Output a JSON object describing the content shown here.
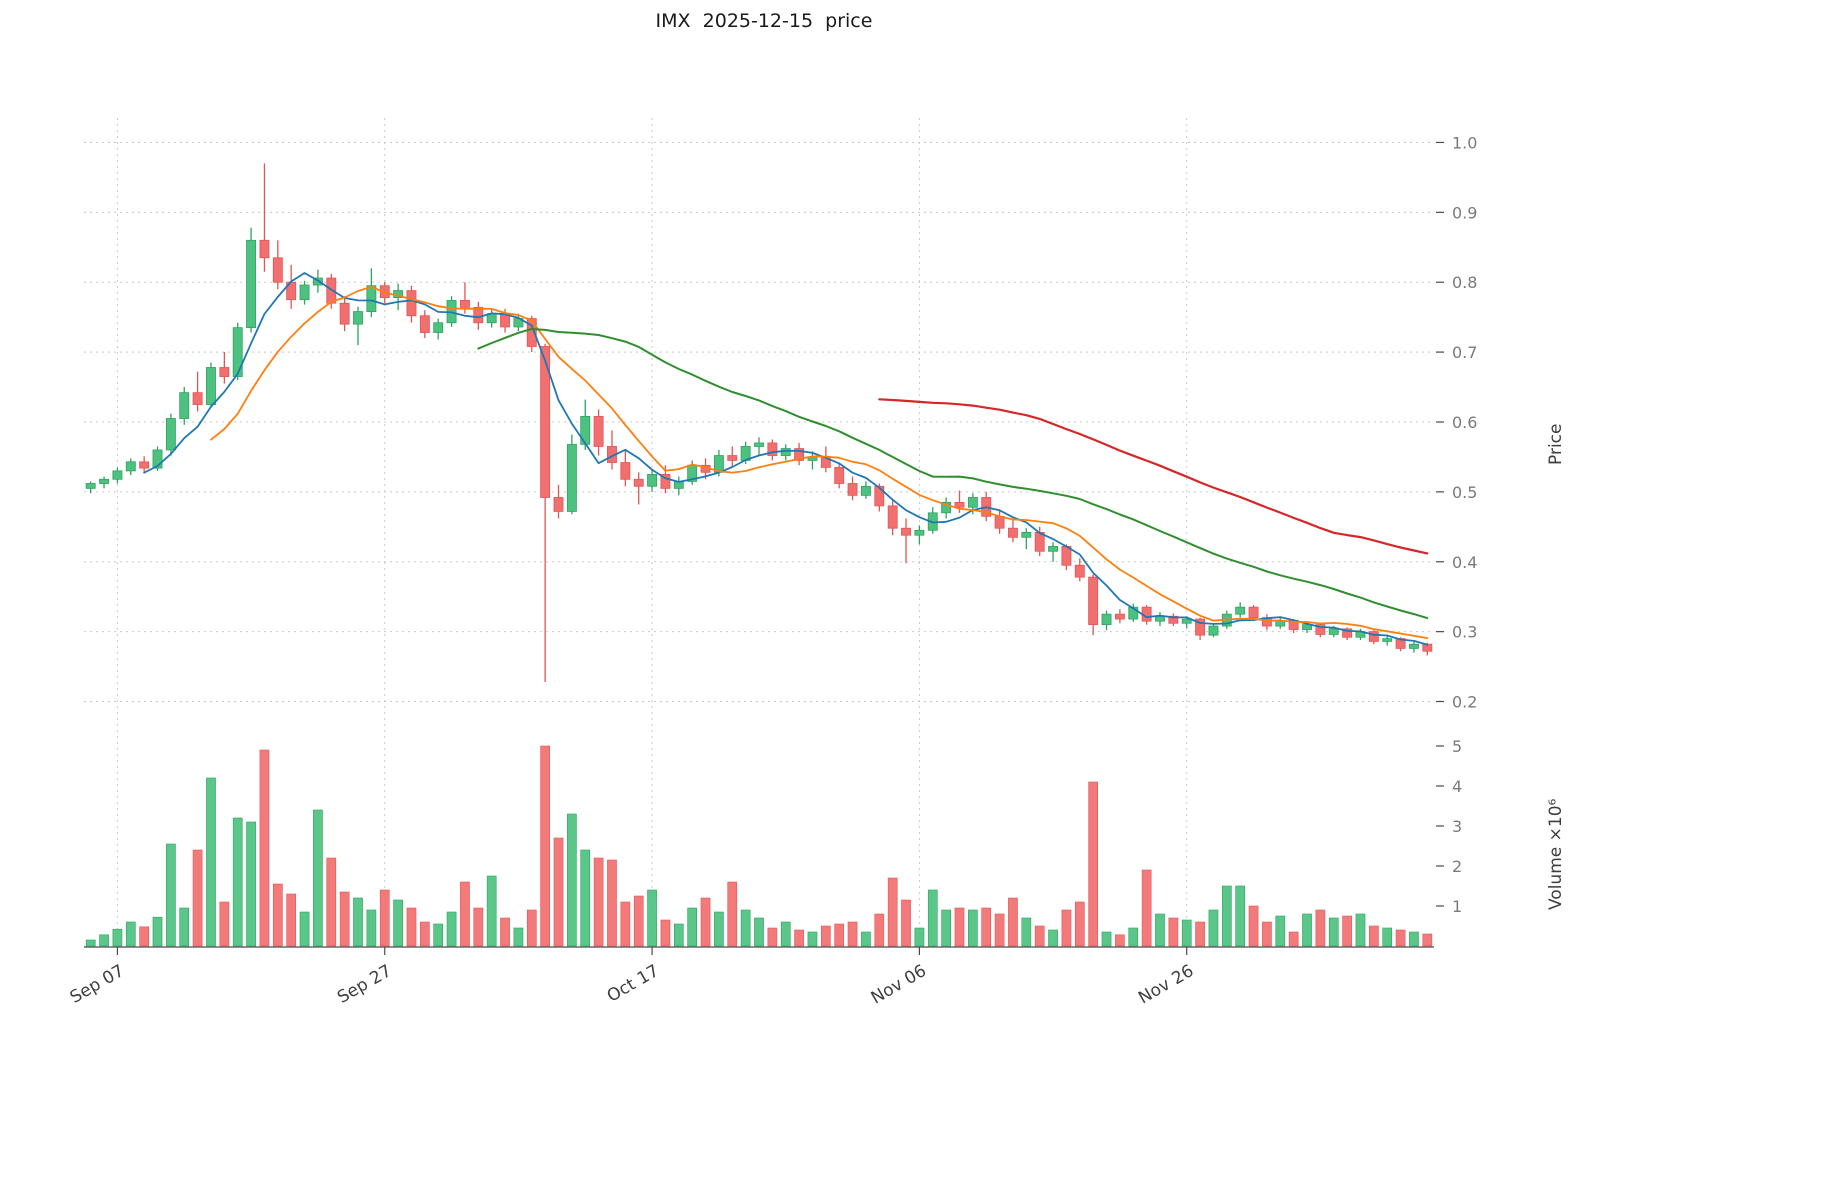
{
  "title": "IMX  2025-12-15  price",
  "style": {
    "up_color": "#4dc17f",
    "up_edge": "#2fa35e",
    "down_color": "#f26f6f",
    "down_edge": "#e25555",
    "grid_color": "#c9c9c9",
    "tick_label_color": "#7a7a7a",
    "x_label_color": "#3f3f3f",
    "spine_color": "#4a4a4a",
    "title_color": "#1a1a1a"
  },
  "chart_data": {
    "type": "candlestick",
    "symbol": "IMX",
    "title": "IMX  2025-12-15  price",
    "legend": "none",
    "grid": "dashed",
    "axes": {
      "price_label": "Price",
      "volume_label": "Volume ×10⁶",
      "price_ticks": [
        0.2,
        0.3,
        0.4,
        0.5,
        0.6,
        0.7,
        0.8,
        0.9,
        1.0
      ],
      "volume_ticks": [
        1,
        2,
        3,
        4,
        5
      ],
      "x_ticks": [
        {
          "index": 2,
          "label": "Sep 07"
        },
        {
          "index": 22,
          "label": "Sep 27"
        },
        {
          "index": 42,
          "label": "Oct 17"
        },
        {
          "index": 62,
          "label": "Nov 06"
        },
        {
          "index": 82,
          "label": "Nov 26"
        }
      ]
    },
    "price_range": [
      0.185,
      1.035
    ],
    "volume_max_millions": 5.45,
    "moving_averages": [
      {
        "period": 5,
        "color": "#1f77b4",
        "width": 1.8
      },
      {
        "period": 10,
        "color": "#ff7f0e",
        "width": 1.8
      },
      {
        "period": 30,
        "color": "#2f8f2f",
        "width": 2.0
      },
      {
        "period": 60,
        "color": "#d62728",
        "width": 2.2
      }
    ],
    "columns": [
      "date",
      "open",
      "high",
      "low",
      "close",
      "volume_millions"
    ],
    "candles": [
      [
        "2025-09-05",
        0.505,
        0.515,
        0.498,
        0.512,
        0.15
      ],
      [
        "2025-09-06",
        0.512,
        0.522,
        0.505,
        0.518,
        0.28
      ],
      [
        "2025-09-07",
        0.518,
        0.535,
        0.512,
        0.53,
        0.42
      ],
      [
        "2025-09-08",
        0.53,
        0.548,
        0.524,
        0.543,
        0.6
      ],
      [
        "2025-09-09",
        0.543,
        0.551,
        0.528,
        0.534,
        0.48
      ],
      [
        "2025-09-10",
        0.534,
        0.565,
        0.53,
        0.56,
        0.72
      ],
      [
        "2025-09-11",
        0.56,
        0.612,
        0.552,
        0.605,
        2.55
      ],
      [
        "2025-09-12",
        0.605,
        0.65,
        0.596,
        0.642,
        0.95
      ],
      [
        "2025-09-13",
        0.642,
        0.672,
        0.615,
        0.625,
        2.4
      ],
      [
        "2025-09-14",
        0.625,
        0.685,
        0.62,
        0.678,
        4.2
      ],
      [
        "2025-09-15",
        0.678,
        0.7,
        0.655,
        0.665,
        1.1
      ],
      [
        "2025-09-16",
        0.665,
        0.742,
        0.66,
        0.735,
        3.2
      ],
      [
        "2025-09-17",
        0.735,
        0.878,
        0.728,
        0.86,
        3.1
      ],
      [
        "2025-09-18",
        0.86,
        0.97,
        0.815,
        0.835,
        4.9
      ],
      [
        "2025-09-19",
        0.835,
        0.86,
        0.79,
        0.8,
        1.55
      ],
      [
        "2025-09-20",
        0.8,
        0.825,
        0.762,
        0.775,
        1.3
      ],
      [
        "2025-09-21",
        0.775,
        0.802,
        0.768,
        0.796,
        0.85
      ],
      [
        "2025-09-22",
        0.796,
        0.818,
        0.785,
        0.806,
        3.4
      ],
      [
        "2025-09-23",
        0.806,
        0.812,
        0.762,
        0.77,
        2.2
      ],
      [
        "2025-09-24",
        0.77,
        0.78,
        0.73,
        0.74,
        1.35
      ],
      [
        "2025-09-25",
        0.74,
        0.765,
        0.71,
        0.758,
        1.2
      ],
      [
        "2025-09-26",
        0.758,
        0.82,
        0.75,
        0.795,
        0.9
      ],
      [
        "2025-09-27",
        0.795,
        0.8,
        0.77,
        0.778,
        1.4
      ],
      [
        "2025-09-28",
        0.778,
        0.798,
        0.76,
        0.788,
        1.15
      ],
      [
        "2025-09-29",
        0.788,
        0.795,
        0.742,
        0.752,
        0.95
      ],
      [
        "2025-09-30",
        0.752,
        0.76,
        0.72,
        0.728,
        0.6
      ],
      [
        "2025-10-01",
        0.728,
        0.748,
        0.718,
        0.742,
        0.55
      ],
      [
        "2025-10-02",
        0.742,
        0.78,
        0.736,
        0.774,
        0.85
      ],
      [
        "2025-10-03",
        0.774,
        0.8,
        0.755,
        0.764,
        1.6
      ],
      [
        "2025-10-04",
        0.764,
        0.772,
        0.732,
        0.742,
        0.95
      ],
      [
        "2025-10-05",
        0.742,
        0.762,
        0.735,
        0.755,
        1.75
      ],
      [
        "2025-10-06",
        0.755,
        0.762,
        0.728,
        0.736,
        0.7
      ],
      [
        "2025-10-07",
        0.736,
        0.755,
        0.73,
        0.748,
        0.45
      ],
      [
        "2025-10-08",
        0.748,
        0.752,
        0.7,
        0.708,
        0.9
      ],
      [
        "2025-10-09",
        0.708,
        0.712,
        0.228,
        0.492,
        5.0
      ],
      [
        "2025-10-10",
        0.492,
        0.51,
        0.462,
        0.472,
        2.7
      ],
      [
        "2025-10-11",
        0.472,
        0.582,
        0.468,
        0.568,
        3.3
      ],
      [
        "2025-10-12",
        0.568,
        0.632,
        0.56,
        0.608,
        2.4
      ],
      [
        "2025-10-13",
        0.608,
        0.618,
        0.552,
        0.565,
        2.2
      ],
      [
        "2025-10-14",
        0.565,
        0.588,
        0.532,
        0.542,
        2.15
      ],
      [
        "2025-10-15",
        0.542,
        0.56,
        0.508,
        0.518,
        1.1
      ],
      [
        "2025-10-16",
        0.518,
        0.528,
        0.482,
        0.508,
        1.25
      ],
      [
        "2025-10-17",
        0.508,
        0.532,
        0.5,
        0.525,
        1.4
      ],
      [
        "2025-10-18",
        0.525,
        0.538,
        0.498,
        0.505,
        0.65
      ],
      [
        "2025-10-19",
        0.505,
        0.522,
        0.495,
        0.515,
        0.55
      ],
      [
        "2025-10-20",
        0.515,
        0.545,
        0.51,
        0.538,
        0.95
      ],
      [
        "2025-10-21",
        0.538,
        0.548,
        0.518,
        0.528,
        1.2
      ],
      [
        "2025-10-22",
        0.528,
        0.56,
        0.522,
        0.552,
        0.85
      ],
      [
        "2025-10-23",
        0.552,
        0.565,
        0.535,
        0.545,
        1.6
      ],
      [
        "2025-10-24",
        0.545,
        0.572,
        0.54,
        0.565,
        0.9
      ],
      [
        "2025-10-25",
        0.565,
        0.578,
        0.552,
        0.57,
        0.7
      ],
      [
        "2025-10-26",
        0.57,
        0.575,
        0.545,
        0.552,
        0.45
      ],
      [
        "2025-10-27",
        0.552,
        0.568,
        0.545,
        0.562,
        0.6
      ],
      [
        "2025-10-28",
        0.562,
        0.57,
        0.538,
        0.545,
        0.4
      ],
      [
        "2025-10-29",
        0.545,
        0.558,
        0.532,
        0.55,
        0.35
      ],
      [
        "2025-10-30",
        0.55,
        0.565,
        0.528,
        0.535,
        0.5
      ],
      [
        "2025-10-31",
        0.535,
        0.542,
        0.505,
        0.512,
        0.55
      ],
      [
        "2025-11-01",
        0.512,
        0.522,
        0.488,
        0.495,
        0.6
      ],
      [
        "2025-11-02",
        0.495,
        0.515,
        0.49,
        0.508,
        0.35
      ],
      [
        "2025-11-03",
        0.508,
        0.512,
        0.472,
        0.48,
        0.8
      ],
      [
        "2025-11-04",
        0.48,
        0.488,
        0.438,
        0.448,
        1.7
      ],
      [
        "2025-11-05",
        0.448,
        0.462,
        0.398,
        0.438,
        1.15
      ],
      [
        "2025-11-06",
        0.438,
        0.452,
        0.425,
        0.445,
        0.45
      ],
      [
        "2025-11-07",
        0.445,
        0.478,
        0.44,
        0.47,
        1.4
      ],
      [
        "2025-11-08",
        0.47,
        0.492,
        0.462,
        0.485,
        0.9
      ],
      [
        "2025-11-09",
        0.485,
        0.502,
        0.47,
        0.478,
        0.95
      ],
      [
        "2025-11-10",
        0.478,
        0.498,
        0.468,
        0.492,
        0.9
      ],
      [
        "2025-11-11",
        0.492,
        0.5,
        0.458,
        0.465,
        0.95
      ],
      [
        "2025-11-12",
        0.465,
        0.475,
        0.44,
        0.448,
        0.8
      ],
      [
        "2025-11-13",
        0.448,
        0.462,
        0.428,
        0.435,
        1.2
      ],
      [
        "2025-11-14",
        0.435,
        0.448,
        0.418,
        0.442,
        0.7
      ],
      [
        "2025-11-15",
        0.442,
        0.45,
        0.408,
        0.415,
        0.5
      ],
      [
        "2025-11-16",
        0.415,
        0.428,
        0.4,
        0.422,
        0.4
      ],
      [
        "2025-11-17",
        0.422,
        0.425,
        0.388,
        0.395,
        0.9
      ],
      [
        "2025-11-18",
        0.395,
        0.405,
        0.372,
        0.378,
        1.1
      ],
      [
        "2025-11-19",
        0.378,
        0.382,
        0.295,
        0.31,
        4.1
      ],
      [
        "2025-11-20",
        0.31,
        0.33,
        0.302,
        0.325,
        0.35
      ],
      [
        "2025-11-21",
        0.325,
        0.332,
        0.312,
        0.318,
        0.28
      ],
      [
        "2025-11-22",
        0.318,
        0.34,
        0.314,
        0.335,
        0.45
      ],
      [
        "2025-11-23",
        0.335,
        0.338,
        0.31,
        0.315,
        1.9
      ],
      [
        "2025-11-24",
        0.315,
        0.328,
        0.308,
        0.322,
        0.8
      ],
      [
        "2025-11-25",
        0.322,
        0.326,
        0.308,
        0.312,
        0.7
      ],
      [
        "2025-11-26",
        0.312,
        0.322,
        0.305,
        0.318,
        0.65
      ],
      [
        "2025-11-27",
        0.318,
        0.32,
        0.288,
        0.295,
        0.6
      ],
      [
        "2025-11-28",
        0.295,
        0.312,
        0.292,
        0.308,
        0.9
      ],
      [
        "2025-11-29",
        0.308,
        0.33,
        0.304,
        0.325,
        1.5
      ],
      [
        "2025-11-30",
        0.325,
        0.342,
        0.32,
        0.335,
        1.5
      ],
      [
        "2025-12-01",
        0.335,
        0.338,
        0.315,
        0.32,
        1.0
      ],
      [
        "2025-12-02",
        0.32,
        0.325,
        0.302,
        0.308,
        0.6
      ],
      [
        "2025-12-03",
        0.308,
        0.32,
        0.304,
        0.316,
        0.75
      ],
      [
        "2025-12-04",
        0.316,
        0.318,
        0.298,
        0.303,
        0.35
      ],
      [
        "2025-12-05",
        0.303,
        0.315,
        0.298,
        0.31,
        0.8
      ],
      [
        "2025-12-06",
        0.31,
        0.312,
        0.292,
        0.296,
        0.9
      ],
      [
        "2025-12-07",
        0.296,
        0.308,
        0.292,
        0.304,
        0.7
      ],
      [
        "2025-12-08",
        0.304,
        0.306,
        0.288,
        0.292,
        0.75
      ],
      [
        "2025-12-09",
        0.292,
        0.304,
        0.288,
        0.3,
        0.8
      ],
      [
        "2025-12-10",
        0.3,
        0.302,
        0.282,
        0.286,
        0.5
      ],
      [
        "2025-12-11",
        0.286,
        0.296,
        0.28,
        0.29,
        0.45
      ],
      [
        "2025-12-12",
        0.29,
        0.292,
        0.272,
        0.276,
        0.4
      ],
      [
        "2025-12-13",
        0.276,
        0.286,
        0.27,
        0.282,
        0.35
      ],
      [
        "2025-12-14",
        0.282,
        0.284,
        0.266,
        0.272,
        0.3
      ]
    ]
  }
}
